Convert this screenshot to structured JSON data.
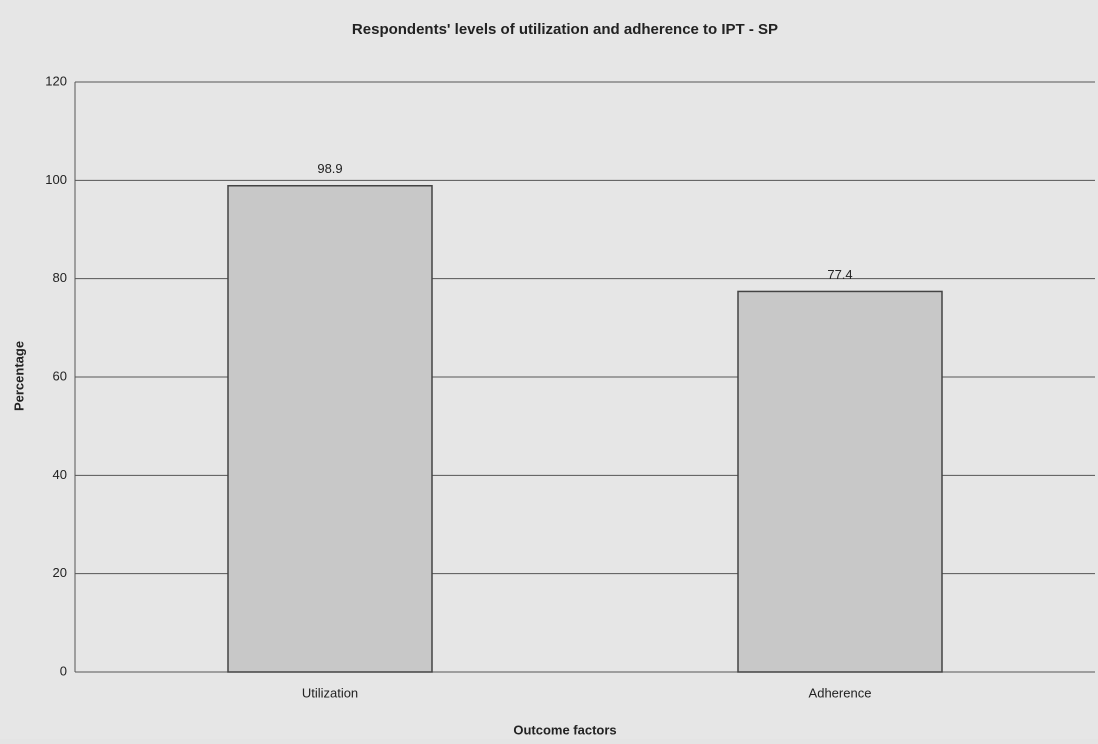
{
  "chart_data": {
    "type": "bar",
    "title": "Respondents' levels of utilization and adherence to IPT - SP",
    "categories": [
      "Utilization",
      "Adherence"
    ],
    "values": [
      98.9,
      77.4
    ],
    "color": "#c8c8c8",
    "xlabel": "Outcome factors",
    "ylabel": "Percentage",
    "ylim": [
      0,
      120
    ],
    "yticks": [
      0,
      20,
      40,
      60,
      80,
      100,
      120
    ],
    "grid": true
  }
}
